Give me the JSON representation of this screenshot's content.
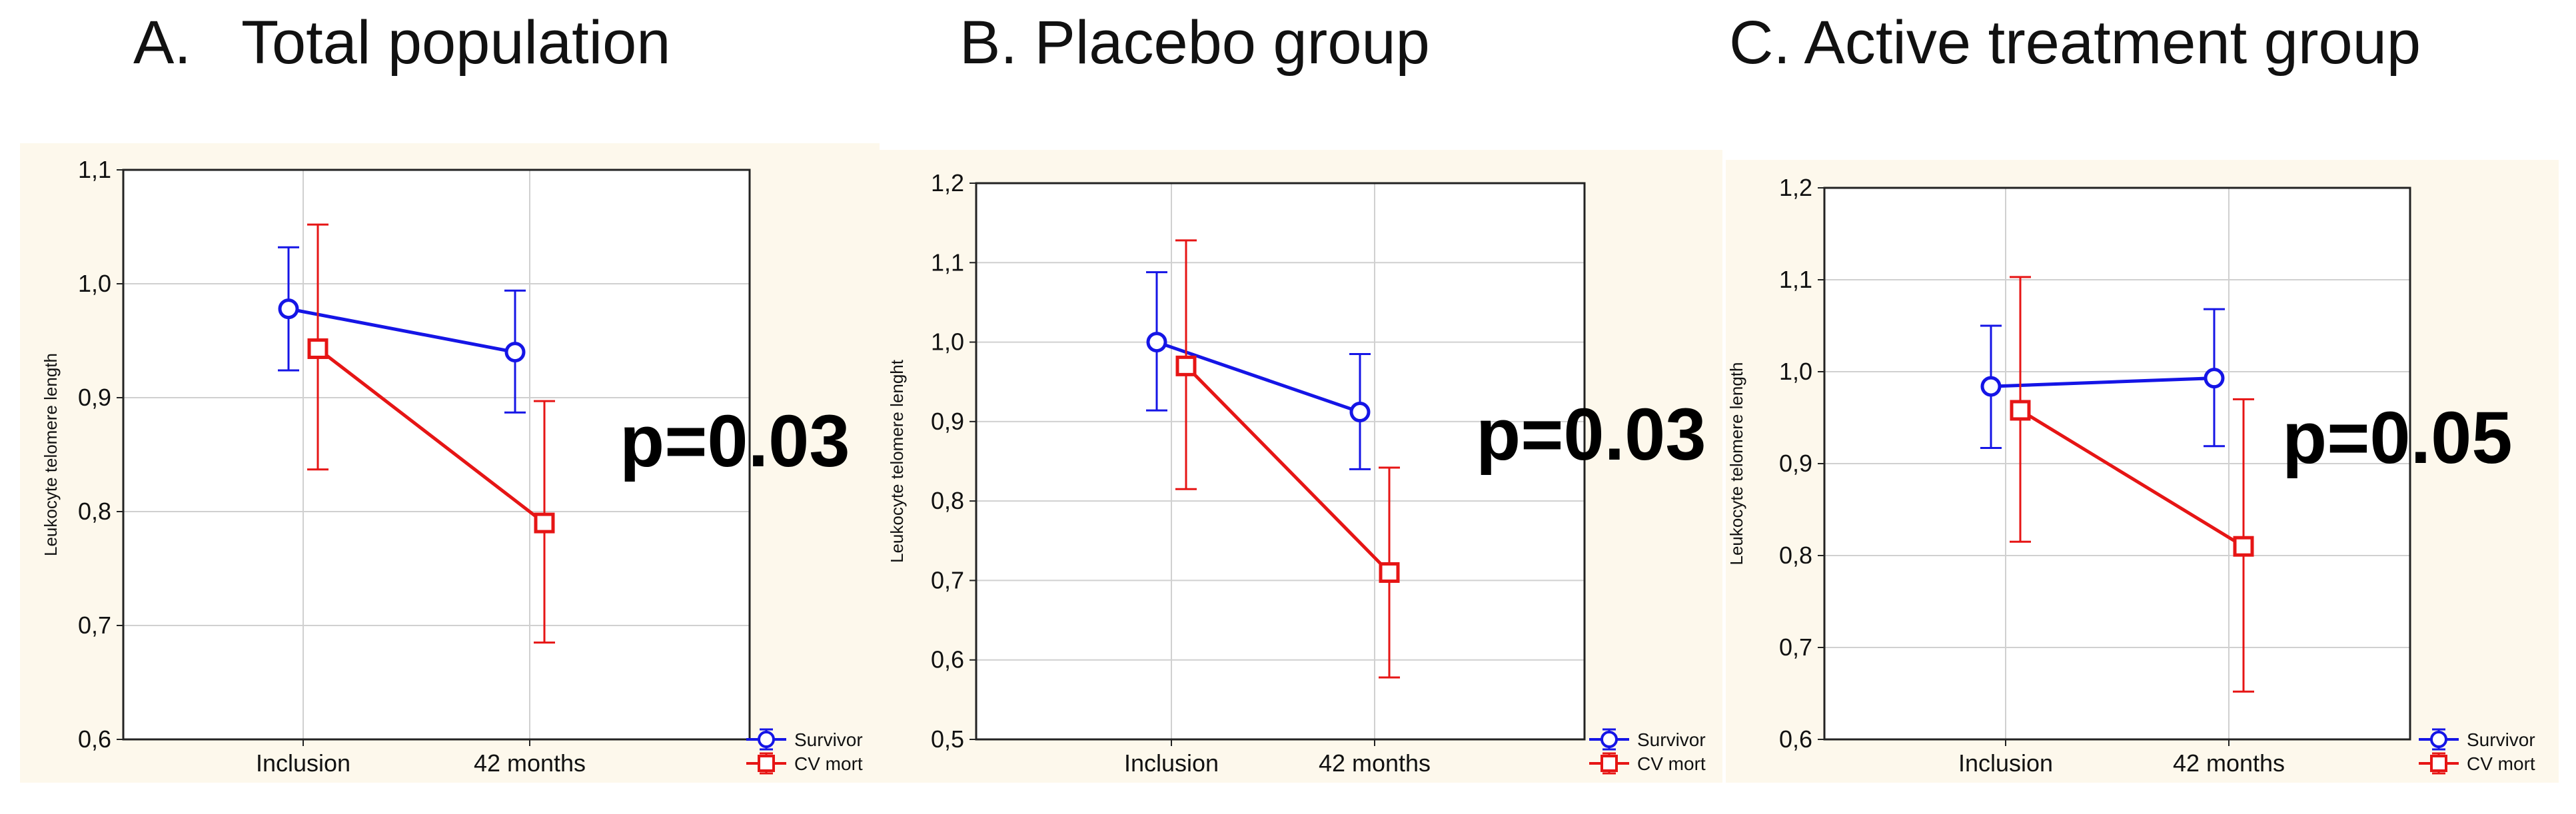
{
  "titles": [
    "A.   Total population",
    "B. Placebo group",
    "C. Active treatment group"
  ],
  "colors": {
    "panel_bg": "#fdf8ec",
    "plot_bg": "#ffffff",
    "grid": "#d0d0d0",
    "survivor": "#1515e6",
    "cvmort": "#e61515"
  },
  "chart_data": [
    {
      "type": "line",
      "title": "A.   Total population",
      "categories": [
        "Inclusion",
        "42 months"
      ],
      "ylabel": "Leukocyte telomere length",
      "ylim": [
        0.6,
        1.1
      ],
      "yticks": [
        "0,6",
        "0,7",
        "0,8",
        "0,9",
        "1,0",
        "1,1"
      ],
      "series": [
        {
          "name": "Survivor",
          "marker": "circle",
          "values": [
            0.978,
            0.94
          ],
          "lower": [
            0.924,
            0.887
          ],
          "upper": [
            1.032,
            0.994
          ]
        },
        {
          "name": "CV mort",
          "marker": "square",
          "values": [
            0.943,
            0.79
          ],
          "lower": [
            0.837,
            0.685
          ],
          "upper": [
            1.052,
            0.897
          ]
        }
      ],
      "annotation": "p=0.03",
      "legend": [
        "Survivor",
        "CV mort"
      ]
    },
    {
      "type": "line",
      "title": "B. Placebo group",
      "categories": [
        "Inclusion",
        "42 months"
      ],
      "ylabel": "Leukocyte telomere lenght",
      "ylim": [
        0.5,
        1.2
      ],
      "yticks": [
        "0,5",
        "0,6",
        "0,7",
        "0,8",
        "0,9",
        "1,0",
        "1,1",
        "1,2"
      ],
      "series": [
        {
          "name": "Survivor",
          "marker": "circle",
          "values": [
            1.0,
            0.912
          ],
          "lower": [
            0.914,
            0.84
          ],
          "upper": [
            1.088,
            0.985
          ]
        },
        {
          "name": "CV mort",
          "marker": "square",
          "values": [
            0.97,
            0.71
          ],
          "lower": [
            0.815,
            0.578
          ],
          "upper": [
            1.128,
            0.842
          ]
        }
      ],
      "annotation": "p=0.03",
      "legend": [
        "Survivor",
        "CV mort"
      ]
    },
    {
      "type": "line",
      "title": "C. Active treatment group",
      "categories": [
        "Inclusion",
        "42 months"
      ],
      "ylabel": "Leukocyte telomere length",
      "ylim": [
        0.6,
        1.2
      ],
      "yticks": [
        "0,6",
        "0,7",
        "0,8",
        "0,9",
        "1,0",
        "1,1",
        "1,2"
      ],
      "series": [
        {
          "name": "Survivor",
          "marker": "circle",
          "values": [
            0.984,
            0.993
          ],
          "lower": [
            0.917,
            0.919
          ],
          "upper": [
            1.05,
            1.068
          ]
        },
        {
          "name": "CV mort",
          "marker": "square",
          "values": [
            0.958,
            0.81
          ],
          "lower": [
            0.815,
            0.652
          ],
          "upper": [
            1.103,
            0.97
          ]
        }
      ],
      "annotation": "p=0.05",
      "legend": [
        "Survivor",
        "CV mort"
      ]
    }
  ]
}
